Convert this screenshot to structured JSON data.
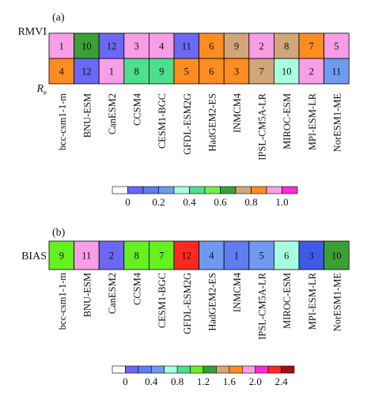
{
  "chart_data": [
    {
      "type": "heatmap",
      "panel_label": "(a)",
      "row_labels": [
        "RMVI",
        "R"
      ],
      "row_label_subscript": [
        "",
        "e"
      ],
      "models": [
        "bcc-csm1-1-m",
        "BNU-ESM",
        "CanESM2",
        "CCSM4",
        "CESM1-BGC",
        "GFDL-ESM2G",
        "HadGEM2-ES",
        "INMCM4",
        "IPSL-CM5A-LR",
        "MIROC-ESM",
        "MPI-ESM-LR",
        "NorESM1-ME"
      ],
      "ranks": [
        [
          1,
          10,
          12,
          3,
          4,
          11,
          6,
          9,
          2,
          8,
          7,
          5
        ],
        [
          4,
          12,
          1,
          8,
          9,
          5,
          6,
          3,
          7,
          10,
          2,
          11
        ]
      ],
      "cell_colors": [
        [
          "#f79ee6",
          "#3aa034",
          "#6a68f5",
          "#f79ee6",
          "#f79ee6",
          "#6a68f5",
          "#ff8c21",
          "#d2a67a",
          "#f79ee6",
          "#d2a67a",
          "#ff8c21",
          "#f79ee6"
        ],
        [
          "#ff8c21",
          "#6a68f5",
          "#f79ee6",
          "#4ddf8c",
          "#4ddf8c",
          "#ff8c21",
          "#ff8c21",
          "#ff8c21",
          "#d2a67a",
          "#a8ffe0",
          "#f79ee6",
          "#6f9af2"
        ]
      ],
      "colorbar": {
        "colors": [
          "#ffffff",
          "#6a68f5",
          "#5f7cf0",
          "#6f9af2",
          "#a8ffe0",
          "#4ddf8c",
          "#6ff04d",
          "#3aa034",
          "#d2a67a",
          "#ff8c21",
          "#f79ee6",
          "#ff2bd8"
        ],
        "tick_labels": [
          "0",
          "0.2",
          "0.4",
          "0.6",
          "0.8",
          "1.0"
        ]
      }
    },
    {
      "type": "heatmap",
      "panel_label": "(b)",
      "row_labels": [
        "BIAS"
      ],
      "models": [
        "bcc-csm1-1-m",
        "BNU-ESM",
        "CanESM2",
        "CCSM4",
        "CESM1-BGC",
        "GFDL-ESM2G",
        "HadGEM2-ES",
        "INMCM4",
        "IPSL-CM5A-LR",
        "MIROC-ESM",
        "MPI-ESM-LR",
        "NorESM1-ME"
      ],
      "ranks": [
        [
          9,
          11,
          2,
          8,
          7,
          12,
          4,
          1,
          5,
          6,
          3,
          10
        ]
      ],
      "cell_colors": [
        [
          "#66f020",
          "#f79ee6",
          "#6a68f5",
          "#66f020",
          "#66f020",
          "#ff2a1f",
          "#6f9af2",
          "#5f7cf0",
          "#6f9af2",
          "#a8ffe0",
          "#3d5be8",
          "#3aa034"
        ]
      ],
      "colorbar": {
        "colors": [
          "#ffffff",
          "#6a68f5",
          "#5f7cf0",
          "#6f9af2",
          "#a8ffe0",
          "#4ddf8c",
          "#66f020",
          "#3aa034",
          "#d2a67a",
          "#ff8c21",
          "#f79ee6",
          "#ff2bd8",
          "#ff2a1f",
          "#a01010"
        ],
        "tick_labels": [
          "0",
          "0.4",
          "0.8",
          "1.2",
          "1.6",
          "2.0",
          "2.4"
        ]
      }
    }
  ]
}
